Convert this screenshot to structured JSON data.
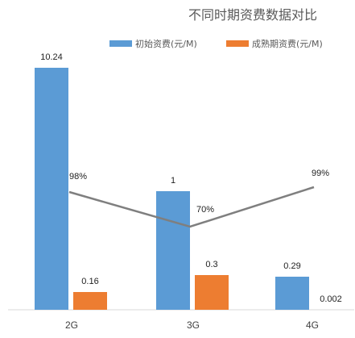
{
  "chart_data": {
    "type": "bar",
    "title": "不同时期资费数据对比",
    "categories": [
      "2G",
      "3G",
      "4G"
    ],
    "series": [
      {
        "name": "初始资费(元/M)",
        "color": "#5B9BD5",
        "values": [
          10.24,
          1,
          0.29
        ],
        "labels": [
          "10.24",
          "1",
          "0.29"
        ]
      },
      {
        "name": "成熟期资费(元/M)",
        "color": "#ED7D31",
        "values": [
          0.16,
          0.3,
          0.002
        ],
        "labels": [
          "0.16",
          "0.3",
          "0.002"
        ]
      }
    ],
    "line": {
      "color": "#7F7F7F",
      "values": [
        98,
        70,
        99
      ],
      "labels": [
        "98%",
        "70%",
        "99%"
      ],
      "unit": "percent"
    },
    "ylim": [
      0,
      10.24
    ],
    "grid": false,
    "legend_position": "top"
  }
}
